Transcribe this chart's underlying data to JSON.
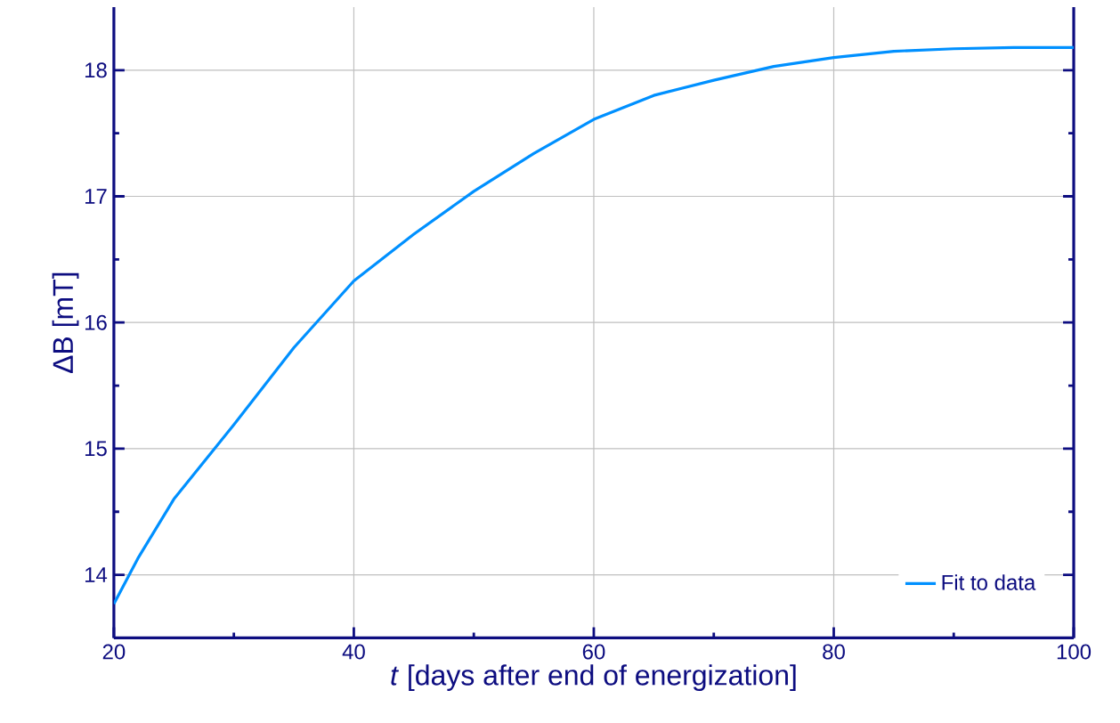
{
  "chart_data": {
    "type": "line",
    "xlabel": "*t* [days after end of energization]",
    "ylabel": "ΔB [mT]",
    "x": [
      20,
      22,
      25,
      30,
      35,
      40,
      45,
      50,
      55,
      60,
      65,
      70,
      75,
      80,
      85,
      90,
      95,
      100
    ],
    "series": [
      {
        "name": "Fit to data",
        "color": "#0090ff",
        "values": [
          13.77,
          14.13,
          14.6,
          15.19,
          15.8,
          16.33,
          16.7,
          17.04,
          17.34,
          17.61,
          17.8,
          17.92,
          18.03,
          18.1,
          18.15,
          18.17,
          18.18,
          18.18
        ]
      }
    ],
    "xlim": [
      20,
      100
    ],
    "xticks": [
      20,
      40,
      60,
      80,
      100
    ],
    "ylim": [
      13.5,
      18.5
    ],
    "yticks": [
      14,
      15,
      16,
      17,
      18
    ],
    "grid": true,
    "legend": "bottom right",
    "marker": "none",
    "line_style": "solid"
  }
}
